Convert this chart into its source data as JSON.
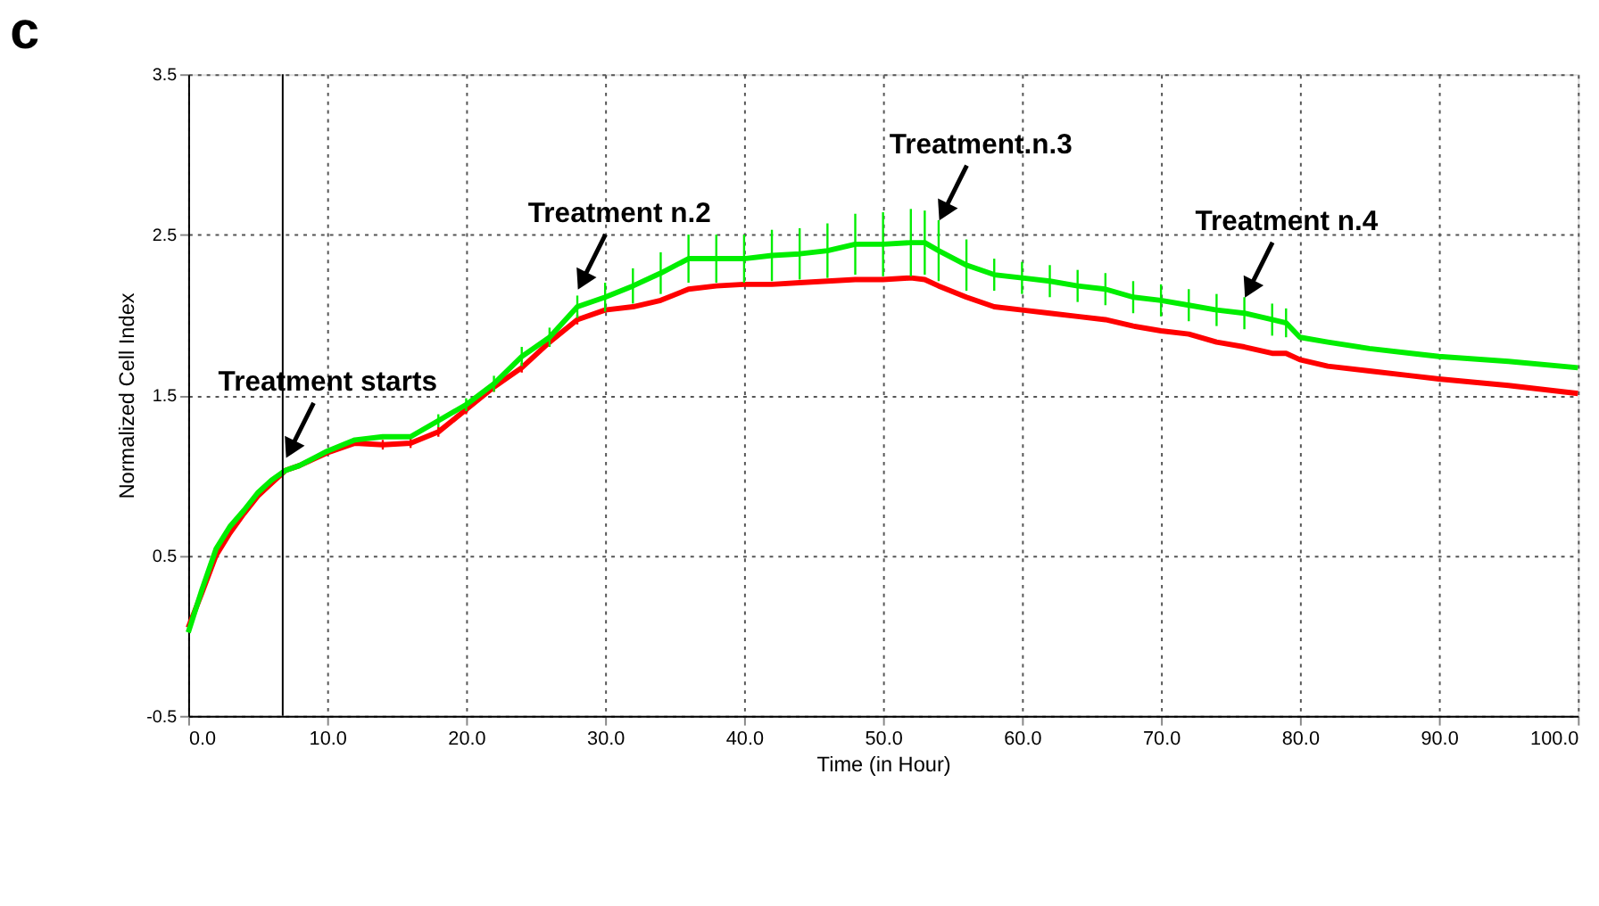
{
  "chart_data": {
    "type": "line",
    "title": "c",
    "xlabel": "Time (in Hour)",
    "ylabel": "Normalized Cell Index",
    "x": [
      0,
      1,
      2,
      3,
      4,
      5,
      6,
      7,
      8,
      10,
      12,
      14,
      16,
      18,
      20,
      22,
      24,
      26,
      28,
      30,
      32,
      34,
      36,
      38,
      40,
      42,
      44,
      46,
      48,
      50,
      52,
      53,
      54,
      56,
      58,
      60,
      62,
      64,
      66,
      68,
      70,
      72,
      74,
      76,
      78,
      79,
      80,
      82,
      85,
      88,
      90,
      95,
      100
    ],
    "series": [
      {
        "color": "#ff0000",
        "values": [
          0.05,
          0.27,
          0.5,
          0.64,
          0.76,
          0.87,
          0.95,
          1.03,
          1.06,
          1.14,
          1.2,
          1.19,
          1.2,
          1.27,
          1.41,
          1.55,
          1.67,
          1.83,
          1.97,
          2.03,
          2.05,
          2.09,
          2.16,
          2.18,
          2.19,
          2.19,
          2.2,
          2.21,
          2.22,
          2.22,
          2.23,
          2.22,
          2.18,
          2.11,
          2.05,
          2.03,
          2.01,
          1.99,
          1.97,
          1.93,
          1.9,
          1.88,
          1.83,
          1.8,
          1.76,
          1.76,
          1.72,
          1.68,
          1.65,
          1.62,
          1.6,
          1.56,
          1.51
        ],
        "errors": [
          null,
          null,
          null,
          null,
          null,
          null,
          null,
          null,
          null,
          null,
          null,
          0.03,
          0.03,
          0.03,
          0.03,
          0.03,
          0.03,
          0.03,
          0.03,
          null,
          null,
          null,
          null,
          null,
          null,
          null,
          null,
          null,
          null,
          null,
          null,
          null,
          null,
          null,
          null,
          null,
          null,
          null,
          null,
          null,
          null,
          null,
          null,
          null,
          null,
          null,
          null,
          null,
          null,
          null,
          null,
          null,
          null
        ]
      },
      {
        "color": "#00ee00",
        "values": [
          0.02,
          0.29,
          0.54,
          0.68,
          0.78,
          0.89,
          0.97,
          1.03,
          1.06,
          1.15,
          1.22,
          1.24,
          1.24,
          1.34,
          1.44,
          1.57,
          1.74,
          1.86,
          2.05,
          2.11,
          2.18,
          2.26,
          2.35,
          2.35,
          2.35,
          2.37,
          2.38,
          2.4,
          2.44,
          2.44,
          2.45,
          2.45,
          2.4,
          2.31,
          2.25,
          2.23,
          2.21,
          2.18,
          2.16,
          2.11,
          2.09,
          2.06,
          2.03,
          2.01,
          1.97,
          1.95,
          1.86,
          1.83,
          1.79,
          1.76,
          1.74,
          1.71,
          1.67
        ],
        "errors": [
          null,
          null,
          null,
          null,
          null,
          null,
          null,
          null,
          null,
          null,
          null,
          null,
          null,
          0.04,
          0.04,
          0.05,
          0.06,
          0.06,
          0.07,
          0.09,
          0.11,
          0.13,
          0.15,
          0.15,
          0.15,
          0.16,
          0.16,
          0.17,
          0.19,
          0.2,
          0.21,
          0.2,
          0.19,
          0.16,
          0.1,
          0.1,
          0.1,
          0.1,
          0.1,
          0.1,
          0.1,
          0.1,
          0.1,
          0.1,
          0.1,
          0.09,
          null,
          null,
          null,
          null,
          null,
          null,
          null
        ]
      }
    ],
    "xlim": [
      0,
      100
    ],
    "ylim": [
      -0.5,
      3.5
    ],
    "xticks": [
      {
        "value": 0,
        "label": "0.0"
      },
      {
        "value": 10,
        "label": "10.0"
      },
      {
        "value": 20,
        "label": "20.0"
      },
      {
        "value": 30,
        "label": "30.0"
      },
      {
        "value": 40,
        "label": "40.0"
      },
      {
        "value": 50,
        "label": "50.0"
      },
      {
        "value": 60,
        "label": "60.0"
      },
      {
        "value": 70,
        "label": "70.0"
      },
      {
        "value": 80,
        "label": "80.0"
      },
      {
        "value": 90,
        "label": "90.0"
      },
      {
        "value": 100,
        "label": "100.0"
      }
    ],
    "yticks": [
      -0.5,
      0.5,
      1.5,
      2.5,
      3.5
    ],
    "ref_lines": [
      {
        "axis": "x",
        "value": 6.8,
        "color": "#000000",
        "line_style": "solid"
      }
    ],
    "annotations": [
      {
        "text": "Treatment starts",
        "x": 7,
        "y": 1.1
      },
      {
        "text": "Treatment n.2",
        "x": 28,
        "y": 2.15
      },
      {
        "text": "Treatment.n.3",
        "x": 54,
        "y": 2.58
      },
      {
        "text": "Treatment n.4",
        "x": 76,
        "y": 2.1
      }
    ],
    "grid": true,
    "marker": "none",
    "line_style": "solid"
  }
}
